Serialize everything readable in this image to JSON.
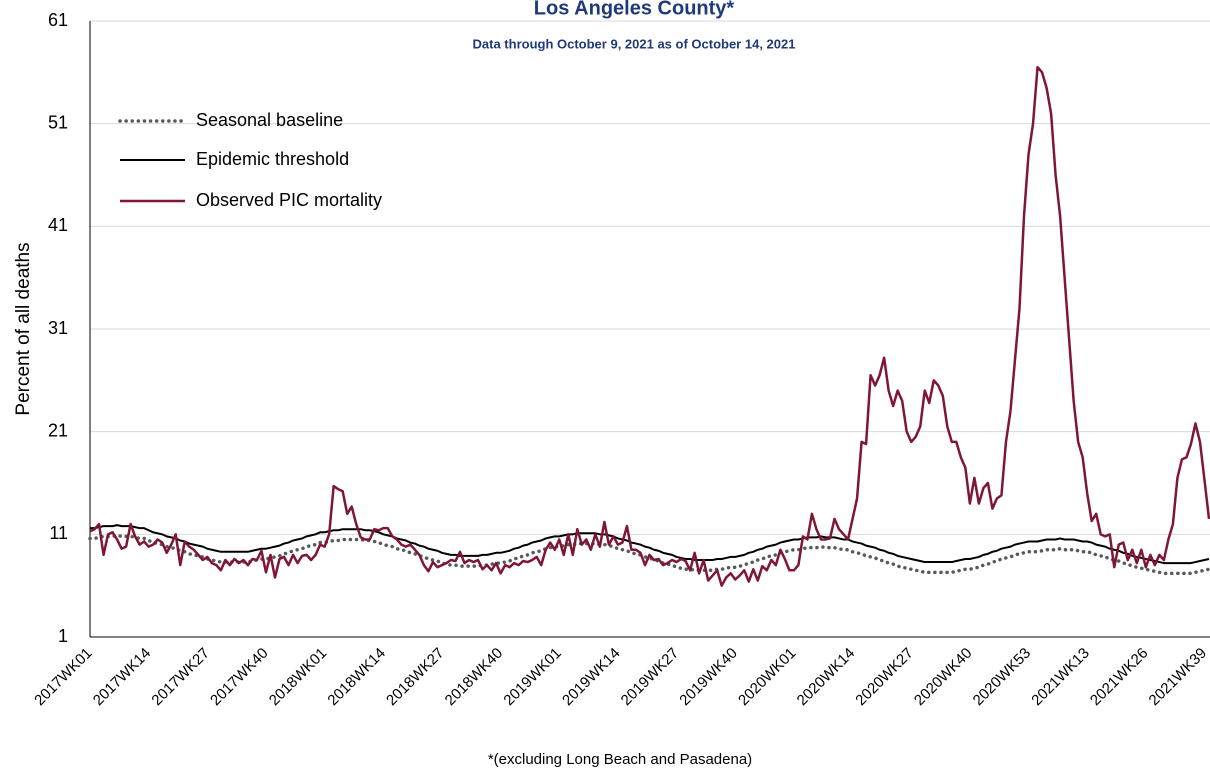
{
  "chart_data": {
    "type": "line",
    "title": "Los Angeles County*",
    "subtitle": "Data through October 9, 2021 as of October 14, 2021",
    "y_label": "Percent of all deaths",
    "footnote": "*(excluding Long Beach and Pasadena)",
    "categories": [
      "2017WK01",
      null,
      null,
      null,
      null,
      null,
      null,
      null,
      null,
      null,
      null,
      null,
      null,
      "2017WK14",
      null,
      null,
      null,
      null,
      null,
      null,
      null,
      null,
      null,
      null,
      null,
      null,
      "2017WK27",
      null,
      null,
      null,
      null,
      null,
      null,
      null,
      null,
      null,
      null,
      null,
      null,
      "2017WK40",
      null,
      null,
      null,
      null,
      null,
      null,
      null,
      null,
      null,
      null,
      null,
      null,
      "2018WK01",
      null,
      null,
      null,
      null,
      null,
      null,
      null,
      null,
      null,
      null,
      null,
      null,
      "2018WK14",
      null,
      null,
      null,
      null,
      null,
      null,
      null,
      null,
      null,
      null,
      null,
      null,
      "2018WK27",
      null,
      null,
      null,
      null,
      null,
      null,
      null,
      null,
      null,
      null,
      null,
      null,
      "2018WK40",
      null,
      null,
      null,
      null,
      null,
      null,
      null,
      null,
      null,
      null,
      null,
      null,
      "2019WK01",
      null,
      null,
      null,
      null,
      null,
      null,
      null,
      null,
      null,
      null,
      null,
      null,
      "2019WK14",
      null,
      null,
      null,
      null,
      null,
      null,
      null,
      null,
      null,
      null,
      null,
      null,
      "2019WK27",
      null,
      null,
      null,
      null,
      null,
      null,
      null,
      null,
      null,
      null,
      null,
      null,
      "2019WK40",
      null,
      null,
      null,
      null,
      null,
      null,
      null,
      null,
      null,
      null,
      null,
      null,
      "2020WK01",
      null,
      null,
      null,
      null,
      null,
      null,
      null,
      null,
      null,
      null,
      null,
      null,
      "2020WK14",
      null,
      null,
      null,
      null,
      null,
      null,
      null,
      null,
      null,
      null,
      null,
      null,
      "2020WK27",
      null,
      null,
      null,
      null,
      null,
      null,
      null,
      null,
      null,
      null,
      null,
      null,
      "2020WK40",
      null,
      null,
      null,
      null,
      null,
      null,
      null,
      null,
      null,
      null,
      null,
      null,
      "2020WK53",
      null,
      null,
      null,
      null,
      null,
      null,
      null,
      null,
      null,
      null,
      null,
      null,
      "2021WK13",
      null,
      null,
      null,
      null,
      null,
      null,
      null,
      null,
      null,
      null,
      null,
      null,
      "2021WK26",
      null,
      null,
      null,
      null,
      null,
      null,
      null,
      null,
      null,
      null,
      null,
      null,
      "2021WK39",
      null
    ],
    "series": [
      {
        "name": "Seasonal baseline",
        "color": "#595959",
        "style": "dotted",
        "values": [
          10.6,
          10.6,
          10.7,
          10.8,
          10.8,
          10.8,
          10.9,
          10.8,
          10.8,
          10.8,
          10.7,
          10.6,
          10.6,
          10.4,
          10.2,
          10.1,
          10.0,
          9.8,
          9.7,
          9.6,
          9.4,
          9.3,
          9.1,
          9.0,
          8.9,
          8.8,
          8.6,
          8.5,
          8.4,
          8.3,
          8.3,
          8.3,
          8.3,
          8.3,
          8.3,
          8.3,
          8.4,
          8.5,
          8.6,
          8.6,
          8.7,
          8.8,
          8.9,
          9.1,
          9.2,
          9.4,
          9.5,
          9.6,
          9.8,
          9.9,
          10.0,
          10.2,
          10.2,
          10.3,
          10.4,
          10.4,
          10.5,
          10.5,
          10.5,
          10.5,
          10.5,
          10.4,
          10.4,
          10.3,
          10.2,
          10.0,
          9.9,
          9.8,
          9.6,
          9.5,
          9.4,
          9.2,
          9.1,
          8.9,
          8.8,
          8.6,
          8.5,
          8.4,
          8.2,
          8.1,
          8.0,
          8.0,
          7.9,
          7.9,
          7.9,
          7.9,
          7.9,
          8.0,
          8.0,
          8.1,
          8.2,
          8.2,
          8.3,
          8.4,
          8.6,
          8.7,
          8.9,
          9.0,
          9.2,
          9.3,
          9.4,
          9.6,
          9.7,
          9.8,
          9.8,
          9.9,
          10.0,
          10.0,
          10.1,
          10.1,
          10.1,
          10.1,
          10.1,
          10.0,
          10.0,
          9.9,
          9.8,
          9.6,
          9.5,
          9.4,
          9.2,
          9.1,
          9.0,
          8.8,
          8.7,
          8.5,
          8.4,
          8.2,
          8.1,
          8.0,
          7.8,
          7.7,
          7.6,
          7.6,
          7.5,
          7.5,
          7.5,
          7.5,
          7.5,
          7.6,
          7.6,
          7.7,
          7.8,
          7.8,
          7.9,
          8.0,
          8.2,
          8.3,
          8.5,
          8.6,
          8.8,
          8.9,
          9.0,
          9.2,
          9.3,
          9.4,
          9.5,
          9.5,
          9.6,
          9.7,
          9.7,
          9.7,
          9.8,
          9.7,
          9.7,
          9.7,
          9.6,
          9.5,
          9.5,
          9.3,
          9.2,
          9.1,
          8.9,
          8.8,
          8.7,
          8.5,
          8.4,
          8.2,
          8.1,
          7.9,
          7.8,
          7.7,
          7.6,
          7.5,
          7.4,
          7.3,
          7.3,
          7.3,
          7.3,
          7.3,
          7.3,
          7.3,
          7.4,
          7.5,
          7.6,
          7.6,
          7.7,
          7.8,
          8.0,
          8.1,
          8.3,
          8.4,
          8.6,
          8.7,
          8.8,
          9.0,
          9.1,
          9.2,
          9.3,
          9.3,
          9.3,
          9.4,
          9.5,
          9.5,
          9.5,
          9.6,
          9.5,
          9.5,
          9.5,
          9.4,
          9.3,
          9.3,
          9.2,
          9.0,
          8.9,
          8.8,
          8.6,
          8.5,
          8.4,
          8.2,
          8.1,
          7.9,
          7.8,
          7.7,
          7.6,
          7.5,
          7.4,
          7.3,
          7.2,
          7.2,
          7.2,
          7.2,
          7.2,
          7.2,
          7.2,
          7.3,
          7.4,
          7.5,
          7.6
        ]
      },
      {
        "name": "Epidemic threshold",
        "color": "#000000",
        "style": "solid",
        "values": [
          11.6,
          11.6,
          11.7,
          11.8,
          11.8,
          11.8,
          11.9,
          11.8,
          11.8,
          11.8,
          11.7,
          11.6,
          11.6,
          11.4,
          11.2,
          11.1,
          11.0,
          10.8,
          10.7,
          10.6,
          10.4,
          10.3,
          10.1,
          10.0,
          9.9,
          9.8,
          9.6,
          9.5,
          9.4,
          9.3,
          9.3,
          9.3,
          9.3,
          9.3,
          9.3,
          9.3,
          9.4,
          9.5,
          9.6,
          9.6,
          9.7,
          9.8,
          9.9,
          10.1,
          10.2,
          10.4,
          10.5,
          10.6,
          10.8,
          10.9,
          11.0,
          11.2,
          11.2,
          11.3,
          11.4,
          11.4,
          11.5,
          11.5,
          11.5,
          11.5,
          11.5,
          11.4,
          11.4,
          11.3,
          11.2,
          11.0,
          10.9,
          10.8,
          10.6,
          10.5,
          10.4,
          10.2,
          10.1,
          9.9,
          9.8,
          9.6,
          9.5,
          9.4,
          9.2,
          9.1,
          9.0,
          9.0,
          8.9,
          8.9,
          8.9,
          8.9,
          8.9,
          9.0,
          9.0,
          9.1,
          9.2,
          9.2,
          9.3,
          9.4,
          9.6,
          9.7,
          9.9,
          10.0,
          10.2,
          10.3,
          10.4,
          10.6,
          10.7,
          10.8,
          10.8,
          10.9,
          11.0,
          11.0,
          11.1,
          11.1,
          11.1,
          11.1,
          11.1,
          11.0,
          11.0,
          10.9,
          10.8,
          10.6,
          10.5,
          10.4,
          10.2,
          10.1,
          10.0,
          9.8,
          9.7,
          9.5,
          9.4,
          9.2,
          9.1,
          9.0,
          8.8,
          8.7,
          8.6,
          8.6,
          8.5,
          8.5,
          8.5,
          8.5,
          8.5,
          8.6,
          8.6,
          8.7,
          8.8,
          8.8,
          8.9,
          9.0,
          9.2,
          9.3,
          9.5,
          9.6,
          9.8,
          9.9,
          10.0,
          10.2,
          10.3,
          10.4,
          10.5,
          10.5,
          10.6,
          10.7,
          10.7,
          10.7,
          10.8,
          10.7,
          10.7,
          10.7,
          10.6,
          10.5,
          10.5,
          10.3,
          10.2,
          10.1,
          9.9,
          9.8,
          9.7,
          9.5,
          9.4,
          9.2,
          9.1,
          8.9,
          8.8,
          8.7,
          8.6,
          8.5,
          8.4,
          8.3,
          8.3,
          8.3,
          8.3,
          8.3,
          8.3,
          8.3,
          8.4,
          8.5,
          8.6,
          8.6,
          8.7,
          8.8,
          9.0,
          9.1,
          9.3,
          9.4,
          9.6,
          9.7,
          9.8,
          10.0,
          10.1,
          10.2,
          10.3,
          10.3,
          10.3,
          10.4,
          10.5,
          10.5,
          10.5,
          10.6,
          10.5,
          10.5,
          10.5,
          10.4,
          10.3,
          10.3,
          10.2,
          10.0,
          9.9,
          9.8,
          9.6,
          9.5,
          9.4,
          9.2,
          9.1,
          8.9,
          8.8,
          8.7,
          8.6,
          8.5,
          8.4,
          8.3,
          8.2,
          8.2,
          8.2,
          8.2,
          8.2,
          8.2,
          8.2,
          8.3,
          8.4,
          8.5,
          8.6
        ]
      },
      {
        "name": "Observed PIC mortality",
        "color": "#7f1734",
        "style": "solid",
        "values": [
          11.3,
          11.5,
          12.0,
          9.0,
          11.0,
          11.2,
          10.5,
          9.6,
          9.8,
          12.0,
          10.8,
          10.0,
          10.3,
          9.8,
          10.0,
          10.5,
          10.2,
          9.2,
          10.0,
          11.0,
          8.0,
          10.3,
          9.8,
          9.5,
          9.0,
          8.5,
          8.8,
          8.2,
          8.0,
          7.5,
          8.5,
          8.0,
          8.6,
          8.2,
          8.5,
          8.0,
          8.6,
          8.5,
          9.4,
          7.3,
          9.0,
          6.8,
          8.6,
          8.8,
          8.0,
          9.0,
          8.2,
          8.9,
          9.0,
          8.5,
          9.0,
          10.0,
          9.8,
          11.0,
          15.7,
          15.4,
          15.2,
          13.0,
          13.7,
          12.0,
          10.7,
          10.5,
          10.5,
          11.5,
          11.4,
          11.6,
          11.6,
          10.8,
          10.5,
          10.0,
          9.8,
          10.0,
          9.5,
          9.0,
          8.0,
          7.4,
          8.3,
          7.8,
          8.0,
          8.2,
          8.5,
          8.4,
          9.3,
          8.2,
          8.5,
          8.3,
          8.5,
          7.6,
          8.0,
          7.5,
          8.2,
          7.2,
          8.0,
          7.8,
          8.2,
          8.0,
          8.4,
          8.3,
          8.5,
          8.8,
          8.0,
          9.5,
          10.2,
          9.5,
          10.5,
          9.0,
          11.0,
          9.0,
          11.5,
          10.0,
          10.5,
          9.5,
          11.0,
          9.8,
          12.2,
          10.0,
          10.8,
          10.0,
          10.2,
          11.8,
          9.5,
          9.5,
          9.2,
          8.0,
          9.0,
          8.5,
          8.6,
          8.0,
          8.2,
          8.5,
          8.3,
          8.6,
          8.4,
          7.5,
          9.2,
          7.2,
          8.5,
          6.5,
          7.0,
          7.5,
          6.0,
          6.8,
          7.2,
          6.6,
          7.0,
          7.5,
          6.4,
          7.6,
          6.5,
          7.9,
          7.5,
          8.5,
          8.0,
          9.5,
          8.6,
          7.5,
          7.5,
          8.0,
          10.8,
          10.5,
          13.0,
          11.5,
          10.5,
          10.5,
          10.6,
          12.5,
          11.5,
          11.0,
          10.5,
          12.5,
          14.5,
          20.0,
          19.8,
          26.5,
          25.5,
          26.5,
          28.2,
          25.0,
          23.5,
          25.0,
          24.0,
          21.0,
          20.0,
          20.5,
          21.5,
          25.0,
          23.8,
          26.0,
          25.5,
          24.5,
          21.5,
          20.0,
          20.0,
          18.5,
          17.5,
          14.0,
          16.5,
          14.0,
          15.5,
          16.0,
          13.5,
          14.5,
          14.8,
          20.0,
          23.0,
          28.0,
          33.0,
          42.0,
          48.0,
          51.0,
          56.5,
          56.0,
          54.5,
          52.0,
          46.0,
          42.0,
          36.0,
          30.0,
          24.0,
          20.0,
          18.5,
          15.0,
          12.3,
          13.0,
          11.0,
          10.8,
          11.0,
          7.8,
          10.0,
          10.2,
          8.5,
          9.5,
          8.2,
          9.5,
          7.8,
          9.0,
          8.0,
          9.0,
          8.5,
          10.5,
          12.0,
          16.5,
          18.3,
          18.5,
          19.8,
          21.8,
          20.0,
          16.3,
          12.5
        ]
      }
    ],
    "ylim": [
      1,
      61
    ],
    "yticks": [
      1,
      11,
      21,
      31,
      41,
      51,
      61
    ],
    "grid": true,
    "legend": "upper left"
  }
}
